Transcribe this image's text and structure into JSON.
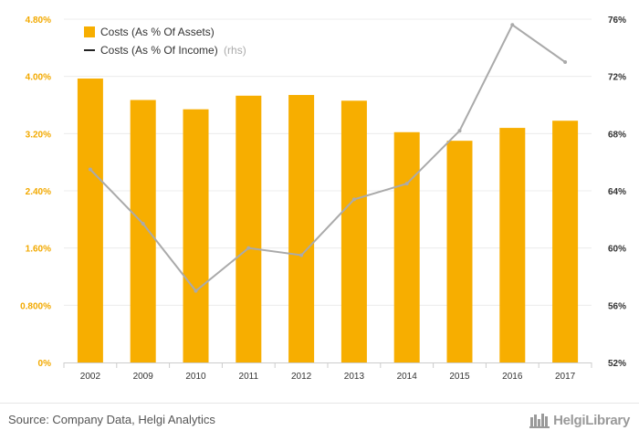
{
  "chart_data": {
    "type": "bar+line",
    "categories": [
      "2002",
      "2009",
      "2010",
      "2011",
      "2012",
      "2013",
      "2014",
      "2015",
      "2016",
      "2017"
    ],
    "series": [
      {
        "name": "Costs (As % Of Assets)",
        "type": "bar",
        "axis": "left",
        "color": "#f7ae00",
        "values": [
          3.97,
          3.67,
          3.54,
          3.73,
          3.74,
          3.66,
          3.22,
          3.1,
          3.28,
          3.38
        ]
      },
      {
        "name": "Costs (As % Of Income)",
        "suffix": "(rhs)",
        "type": "line",
        "axis": "right",
        "color": "#aaaaaa",
        "values": [
          65.5,
          61.7,
          57.0,
          60.0,
          59.5,
          63.4,
          64.5,
          68.2,
          75.6,
          73.0
        ]
      }
    ],
    "y_left": {
      "min": 0,
      "max": 4.8,
      "ticks": [
        "0%",
        "0.800%",
        "1.60%",
        "2.40%",
        "3.20%",
        "4.00%",
        "4.80%"
      ]
    },
    "y_right": {
      "min": 52,
      "max": 76,
      "ticks": [
        "52%",
        "56%",
        "60%",
        "64%",
        "68%",
        "72%",
        "76%"
      ]
    },
    "legend_position": "top-left",
    "grid": true
  },
  "footer": {
    "source": "Source: Company Data, Helgi Analytics",
    "logo_text": "HelgiLibrary",
    "logo_icon": "helgi-library-logo-icon"
  }
}
